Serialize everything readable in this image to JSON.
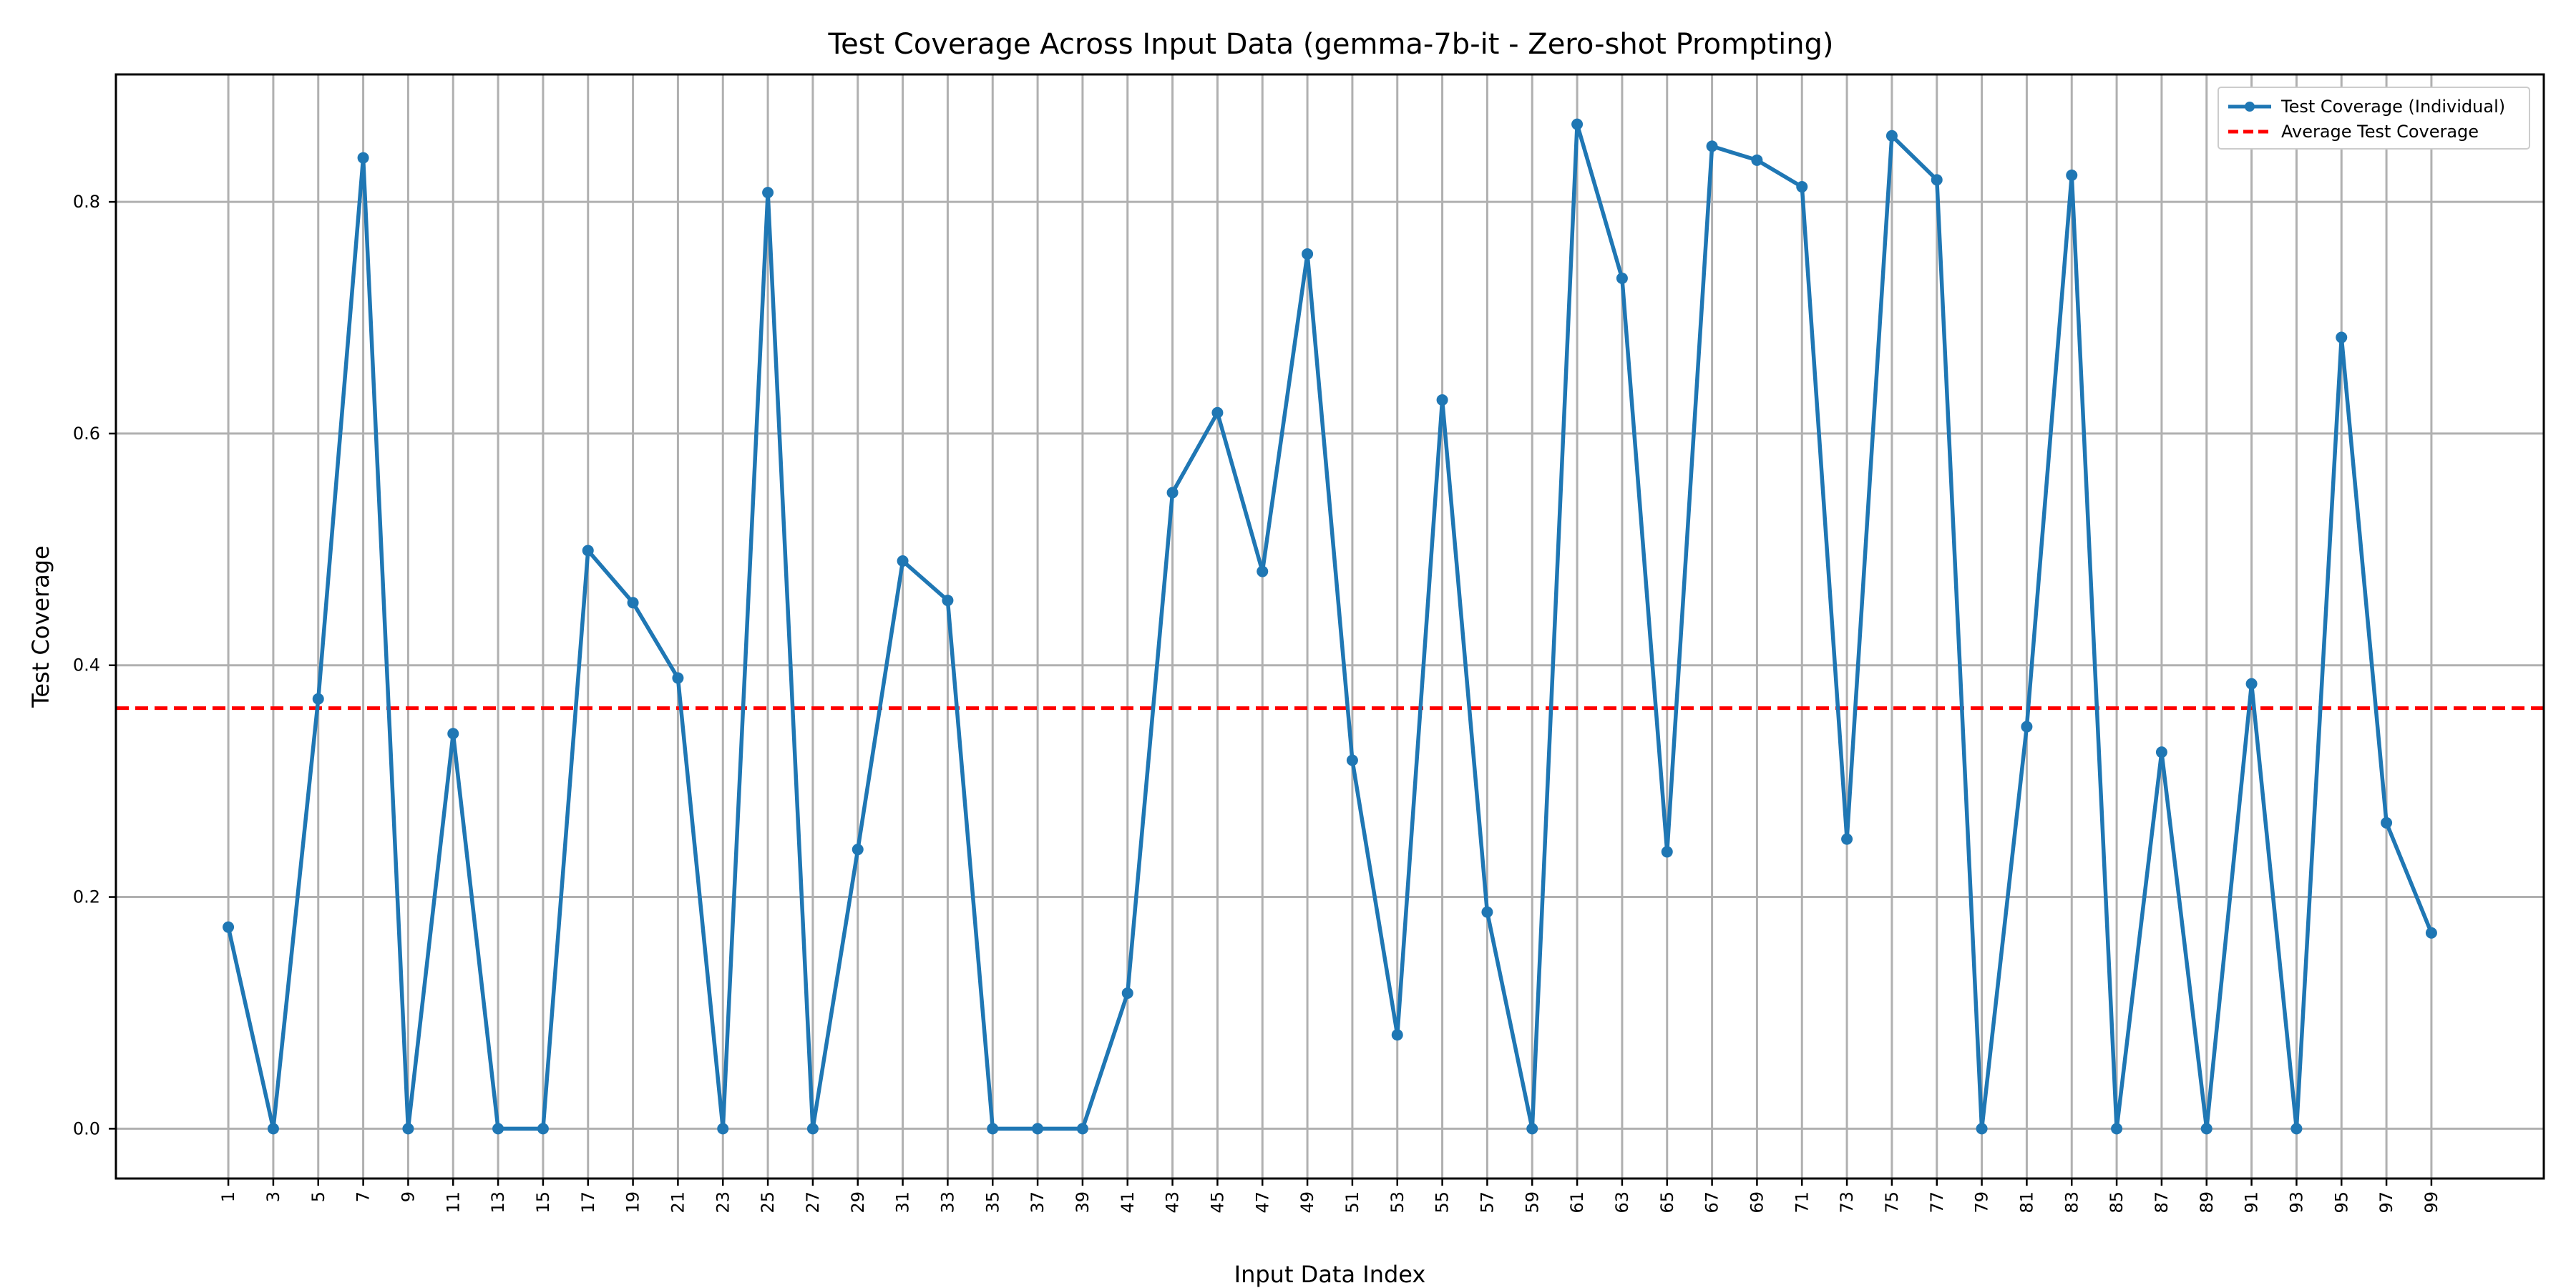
{
  "chart_data": {
    "type": "line",
    "title": "Test Coverage Across Input Data (gemma-7b-it - Zero-shot Prompting)",
    "xlabel": "Input Data Index",
    "ylabel": "Test Coverage",
    "x": [
      1,
      3,
      5,
      7,
      9,
      11,
      13,
      15,
      17,
      19,
      21,
      23,
      25,
      27,
      29,
      31,
      33,
      35,
      37,
      39,
      41,
      43,
      45,
      47,
      49,
      51,
      53,
      55,
      57,
      59,
      61,
      63,
      65,
      67,
      69,
      71,
      73,
      75,
      77,
      79,
      81,
      83,
      85,
      87,
      89,
      91,
      93,
      95,
      97,
      99
    ],
    "xticks": [
      "1",
      "3",
      "5",
      "7",
      "9",
      "11",
      "13",
      "15",
      "17",
      "19",
      "21",
      "23",
      "25",
      "27",
      "29",
      "31",
      "33",
      "35",
      "37",
      "39",
      "41",
      "43",
      "45",
      "47",
      "49",
      "51",
      "53",
      "55",
      "57",
      "59",
      "61",
      "63",
      "65",
      "67",
      "69",
      "71",
      "73",
      "75",
      "77",
      "79",
      "81",
      "83",
      "85",
      "87",
      "89",
      "91",
      "93",
      "95",
      "97",
      "99"
    ],
    "yticks": [
      "0.0",
      "0.2",
      "0.4",
      "0.6",
      "0.8"
    ],
    "ytick_values": [
      0.0,
      0.2,
      0.4,
      0.6,
      0.8
    ],
    "xlim": [
      -4,
      104
    ],
    "ylim": [
      -0.043,
      0.91
    ],
    "grid": true,
    "legend_position": "top-right",
    "series": [
      {
        "name": "Test Coverage (Individual)",
        "color": "#1f77b4",
        "style": "solid-with-markers",
        "values": [
          0.174,
          0.0,
          0.371,
          0.838,
          0.0,
          0.341,
          0.0,
          0.0,
          0.499,
          0.454,
          0.389,
          0.0,
          0.808,
          0.0,
          0.241,
          0.49,
          0.456,
          0.0,
          0.0,
          0.0,
          0.117,
          0.549,
          0.618,
          0.481,
          0.755,
          0.318,
          0.081,
          0.629,
          0.187,
          0.0,
          0.867,
          0.734,
          0.239,
          0.848,
          0.836,
          0.813,
          0.25,
          0.857,
          0.819,
          0.0,
          0.347,
          0.823,
          0.0,
          0.325,
          0.0,
          0.384,
          0.0,
          0.683,
          0.264,
          0.169
        ]
      },
      {
        "name": "Average Test Coverage",
        "color": "#ff0000",
        "style": "dashed",
        "value": 0.363
      }
    ]
  }
}
